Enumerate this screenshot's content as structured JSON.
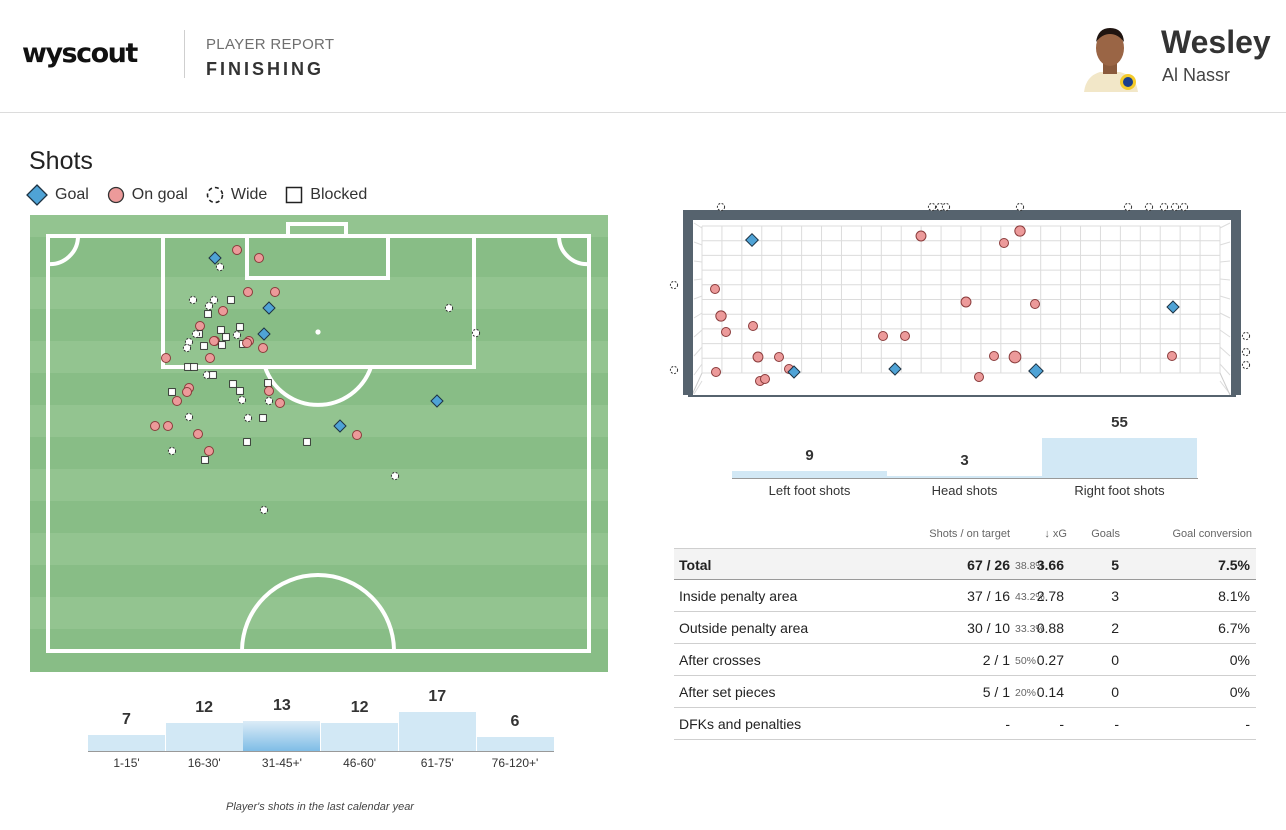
{
  "header": {
    "logo": "wyscout",
    "kicker": "PLAYER REPORT",
    "title": "FINISHING",
    "player_name": "Wesley",
    "team": "Al Nassr"
  },
  "section": {
    "title": "Shots",
    "legend": {
      "goal": "Goal",
      "on_goal": "On goal",
      "wide": "Wide",
      "blocked": "Blocked"
    }
  },
  "colors": {
    "pitch_dark": "#88bd86",
    "pitch_light": "#93c490",
    "goal": "#4fa3d6",
    "on_goal": "#ec9a9a",
    "bar": "#d2e8f5",
    "frame": "#56636e"
  },
  "foot_shots": [
    {
      "label": "Left foot shots",
      "value": 9
    },
    {
      "label": "Head shots",
      "value": 3
    },
    {
      "label": "Right foot shots",
      "value": 55
    }
  ],
  "stats": {
    "headers": {
      "shots": "Shots / on target",
      "xg": "↓  xG",
      "goals": "Goals",
      "conversion": "Goal conversion"
    },
    "rows": [
      {
        "label": "Total",
        "shots": "67 / 26",
        "pct": "38.8%",
        "xg": "3.66",
        "goals": "5",
        "conversion": "7.5%"
      },
      {
        "label": "Inside penalty area",
        "shots": "37 / 16",
        "pct": "43.2%",
        "xg": "2.78",
        "goals": "3",
        "conversion": "8.1%"
      },
      {
        "label": "Outside penalty area",
        "shots": "30 / 10",
        "pct": "33.3%",
        "xg": "0.88",
        "goals": "2",
        "conversion": "6.7%"
      },
      {
        "label": "After crosses",
        "shots": "2 / 1",
        "pct": "50%",
        "xg": "0.27",
        "goals": "0",
        "conversion": "0%"
      },
      {
        "label": "After set pieces",
        "shots": "5 / 1",
        "pct": "20%",
        "xg": "0.14",
        "goals": "0",
        "conversion": "0%"
      },
      {
        "label": "DFKs and penalties",
        "shots": "-",
        "pct": "",
        "xg": "-",
        "goals": "-",
        "conversion": "-"
      }
    ]
  },
  "time_bars": [
    {
      "label": "1-15'",
      "value": 7
    },
    {
      "label": "16-30'",
      "value": 12
    },
    {
      "label": "31-45+'",
      "value": 13,
      "highlight": true
    },
    {
      "label": "46-60'",
      "value": 12
    },
    {
      "label": "61-75'",
      "value": 17
    },
    {
      "label": "76-120+'",
      "value": 6
    }
  ],
  "caption": "Player's shots in the last calendar year"
}
